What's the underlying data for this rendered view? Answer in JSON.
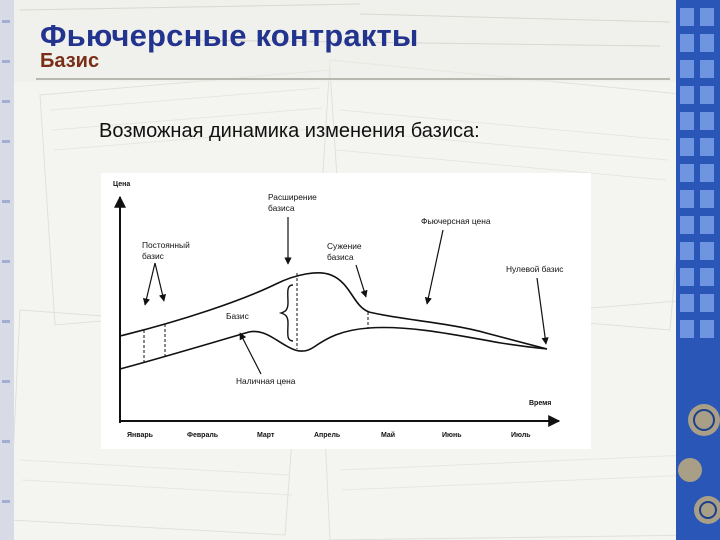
{
  "header": {
    "title": "Фьючерсные контракты",
    "subtitle": "Базис"
  },
  "lead_text": "Возможная динамика изменения базиса:",
  "diagram": {
    "y_axis_label": "Цена",
    "x_axis_label": "Время",
    "months": [
      "Январь",
      "Февраль",
      "Март",
      "Апрель",
      "Май",
      "Июнь",
      "Июль"
    ],
    "callouts": {
      "constant_basis": [
        "Постоянный",
        "базис"
      ],
      "basis_widening": [
        "Расширение",
        "базиса"
      ],
      "basis_narrowing": [
        "Сужение",
        "базиса"
      ],
      "futures_price": "Фьючерсная цена",
      "zero_basis": "Нулевой базис",
      "basis": "Базис",
      "spot_price": "Наличная цена"
    }
  },
  "colors": {
    "title": "#23348f",
    "subtitle": "#7a2e18",
    "strip": "#2a56b8"
  }
}
